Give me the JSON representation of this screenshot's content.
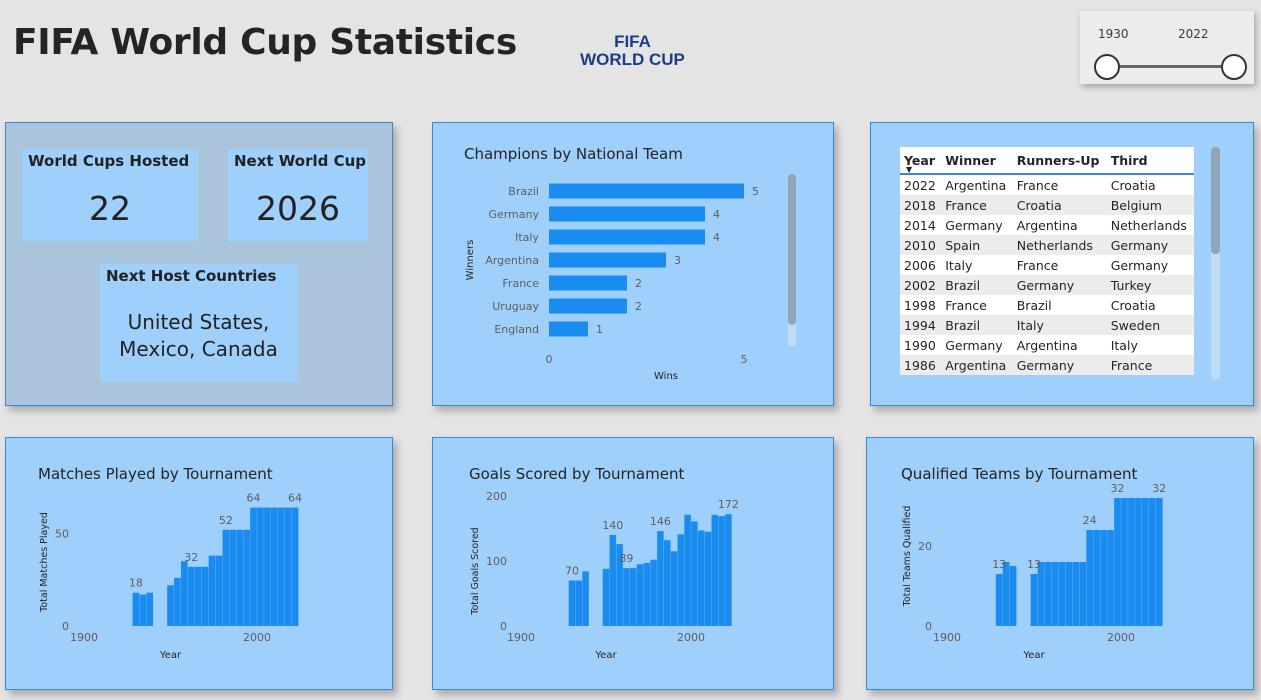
{
  "header": {
    "title": "FIFA World Cup Statistics",
    "logo_line1": "FIFA",
    "logo_line2": "WORLD CUP"
  },
  "slicer": {
    "start": "1930",
    "end": "2022"
  },
  "kpis": {
    "hosted_label": "World Cups Hosted",
    "hosted_value": "22",
    "next_label": "Next World Cup",
    "next_value": "2026",
    "hosts_label": "Next Host Countries",
    "hosts_line1": "United States,",
    "hosts_line2": "Mexico, Canada"
  },
  "table": {
    "headers": [
      "Year",
      "Winner",
      "Runners-Up",
      "Third"
    ],
    "rows": [
      [
        "2022",
        "Argentina",
        "France",
        "Croatia"
      ],
      [
        "2018",
        "France",
        "Croatia",
        "Belgium"
      ],
      [
        "2014",
        "Germany",
        "Argentina",
        "Netherlands"
      ],
      [
        "2010",
        "Spain",
        "Netherlands",
        "Germany"
      ],
      [
        "2006",
        "Italy",
        "France",
        "Germany"
      ],
      [
        "2002",
        "Brazil",
        "Germany",
        "Turkey"
      ],
      [
        "1998",
        "France",
        "Brazil",
        "Croatia"
      ],
      [
        "1994",
        "Brazil",
        "Italy",
        "Sweden"
      ],
      [
        "1990",
        "Germany",
        "Argentina",
        "Italy"
      ],
      [
        "1986",
        "Argentina",
        "Germany",
        "France"
      ]
    ]
  },
  "colors": {
    "bar": "#1a8cf0",
    "panel": "#9fcffb",
    "panel_grey": "#a9c4db",
    "border": "#3a87d5"
  },
  "chart_data": [
    {
      "id": "champions",
      "type": "bar",
      "orientation": "horizontal",
      "title": "Champions by National Team",
      "xlabel": "Wins",
      "ylabel": "Winners",
      "categories": [
        "Brazil",
        "Germany",
        "Italy",
        "Argentina",
        "France",
        "Uruguay",
        "England"
      ],
      "values": [
        5,
        4,
        4,
        3,
        2,
        2,
        1
      ],
      "xlim": [
        0,
        5
      ],
      "xticks": [
        "0",
        "5"
      ]
    },
    {
      "id": "matches",
      "type": "bar",
      "title": "Matches Played by Tournament",
      "xlabel": "Year",
      "ylabel": "Total Matches Played",
      "x": [
        1930,
        1934,
        1938,
        1950,
        1954,
        1958,
        1962,
        1966,
        1970,
        1974,
        1978,
        1982,
        1986,
        1990,
        1994,
        1998,
        2002,
        2006,
        2010,
        2014,
        2018,
        2022
      ],
      "values": [
        18,
        17,
        18,
        22,
        26,
        35,
        32,
        32,
        32,
        38,
        38,
        52,
        52,
        52,
        52,
        64,
        64,
        64,
        64,
        64,
        64,
        64
      ],
      "data_labels": [
        {
          "x": 1930,
          "label": "18"
        },
        {
          "x": 1962,
          "label": "32"
        },
        {
          "x": 1982,
          "label": "52"
        },
        {
          "x": 1998,
          "label": "64"
        },
        {
          "x": 2022,
          "label": "64"
        }
      ],
      "ylim": [
        0,
        80
      ],
      "yticks": [
        "0",
        "50"
      ],
      "xticks": [
        "1900",
        "2000"
      ]
    },
    {
      "id": "goals",
      "type": "bar",
      "title": "Goals Scored by Tournament",
      "xlabel": "Year",
      "ylabel": "Total Goals Scored",
      "x": [
        1930,
        1934,
        1938,
        1950,
        1954,
        1958,
        1962,
        1966,
        1970,
        1974,
        1978,
        1982,
        1986,
        1990,
        1994,
        1998,
        2002,
        2006,
        2010,
        2014,
        2018,
        2022
      ],
      "values": [
        70,
        70,
        84,
        88,
        140,
        126,
        89,
        89,
        95,
        97,
        102,
        146,
        132,
        115,
        141,
        171,
        161,
        147,
        145,
        171,
        169,
        172
      ],
      "data_labels": [
        {
          "x": 1930,
          "label": "70"
        },
        {
          "x": 1954,
          "label": "140"
        },
        {
          "x": 1962,
          "label": "89"
        },
        {
          "x": 1982,
          "label": "146"
        },
        {
          "x": 2022,
          "label": "172"
        }
      ],
      "ylim": [
        0,
        200
      ],
      "yticks": [
        "0",
        "100",
        "200"
      ],
      "xticks": [
        "1900",
        "2000"
      ]
    },
    {
      "id": "teams",
      "type": "bar",
      "title": "Qualified Teams by Tournament",
      "xlabel": "Year",
      "ylabel": "Total Teams Qualified",
      "x": [
        1930,
        1934,
        1938,
        1950,
        1954,
        1958,
        1962,
        1966,
        1970,
        1974,
        1978,
        1982,
        1986,
        1990,
        1994,
        1998,
        2002,
        2006,
        2010,
        2014,
        2018,
        2022
      ],
      "values": [
        13,
        16,
        15,
        13,
        16,
        16,
        16,
        16,
        16,
        16,
        16,
        24,
        24,
        24,
        24,
        32,
        32,
        32,
        32,
        32,
        32,
        32
      ],
      "data_labels": [
        {
          "x": 1930,
          "label": "13"
        },
        {
          "x": 1950,
          "label": "13"
        },
        {
          "x": 1982,
          "label": "24"
        },
        {
          "x": 1998,
          "label": "32"
        },
        {
          "x": 2022,
          "label": "32"
        }
      ],
      "ylim": [
        0,
        40
      ],
      "yticks": [
        "0",
        "20"
      ],
      "xticks": [
        "1900",
        "2000"
      ]
    }
  ]
}
